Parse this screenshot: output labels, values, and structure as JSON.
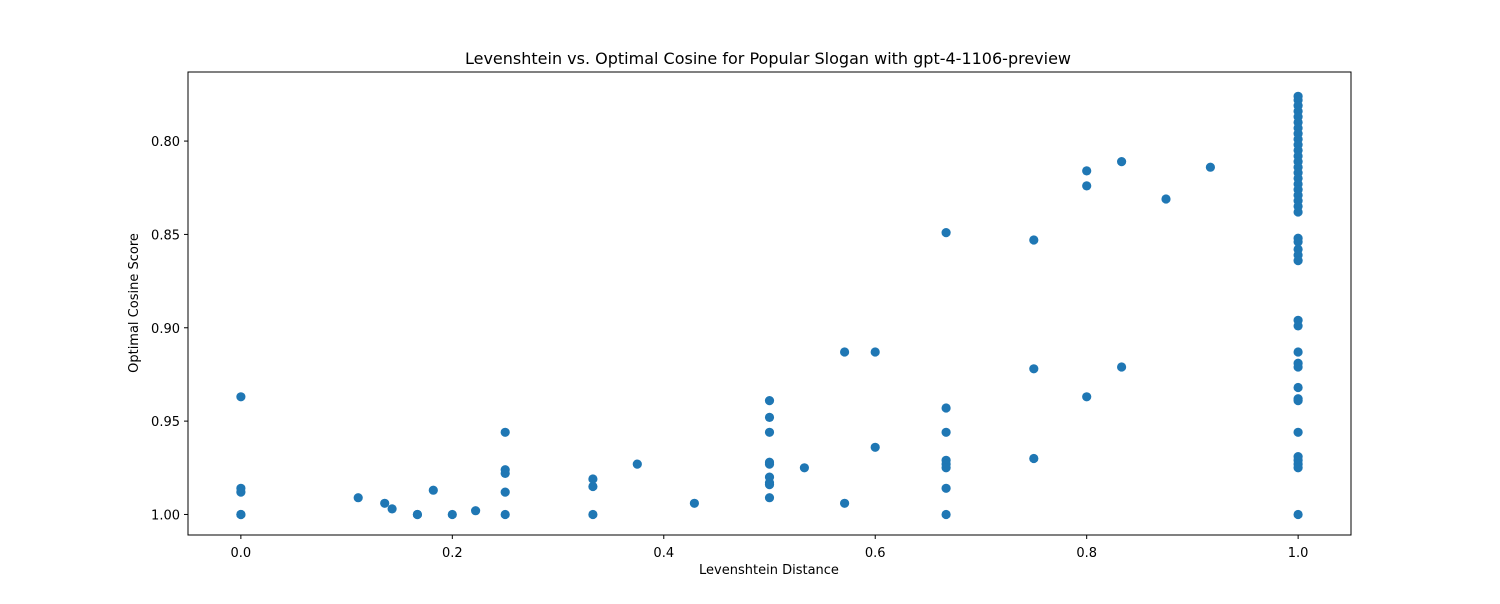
{
  "chart_data": {
    "type": "scatter",
    "title": "Levenshtein vs. Optimal Cosine for Popular Slogan with gpt-4-1106-preview",
    "xlabel": "Levenshtein Distance",
    "ylabel": "Optimal Cosine Score",
    "xlim": [
      -0.05,
      1.05
    ],
    "ylim": [
      1.011,
      0.763
    ],
    "y_inverted": true,
    "grid": false,
    "x_ticks": [
      0.0,
      0.2,
      0.4,
      0.6,
      0.8,
      1.0
    ],
    "x_tick_labels": [
      "0.0",
      "0.2",
      "0.4",
      "0.6",
      "0.8",
      "1.0"
    ],
    "y_ticks": [
      0.8,
      0.85,
      0.9,
      0.95,
      1.0
    ],
    "y_tick_labels": [
      "0.80",
      "0.85",
      "0.90",
      "0.95",
      "1.00"
    ],
    "marker_color": "#1f77b4",
    "points": [
      {
        "x": 0.0,
        "y": 0.937
      },
      {
        "x": 0.0,
        "y": 0.986
      },
      {
        "x": 0.0,
        "y": 0.988
      },
      {
        "x": 0.0,
        "y": 1.0
      },
      {
        "x": 0.0,
        "y": 1.0
      },
      {
        "x": 0.111,
        "y": 0.991
      },
      {
        "x": 0.136,
        "y": 0.994
      },
      {
        "x": 0.143,
        "y": 0.997
      },
      {
        "x": 0.167,
        "y": 1.0
      },
      {
        "x": 0.167,
        "y": 1.0
      },
      {
        "x": 0.182,
        "y": 0.987
      },
      {
        "x": 0.2,
        "y": 1.0
      },
      {
        "x": 0.222,
        "y": 0.998
      },
      {
        "x": 0.25,
        "y": 0.956
      },
      {
        "x": 0.25,
        "y": 0.976
      },
      {
        "x": 0.25,
        "y": 0.978
      },
      {
        "x": 0.25,
        "y": 0.988
      },
      {
        "x": 0.25,
        "y": 1.0
      },
      {
        "x": 0.333,
        "y": 0.981
      },
      {
        "x": 0.333,
        "y": 0.985
      },
      {
        "x": 0.333,
        "y": 1.0
      },
      {
        "x": 0.375,
        "y": 0.973
      },
      {
        "x": 0.429,
        "y": 0.994
      },
      {
        "x": 0.5,
        "y": 0.939
      },
      {
        "x": 0.5,
        "y": 0.948
      },
      {
        "x": 0.5,
        "y": 0.956
      },
      {
        "x": 0.5,
        "y": 0.972
      },
      {
        "x": 0.5,
        "y": 0.973
      },
      {
        "x": 0.5,
        "y": 0.98
      },
      {
        "x": 0.5,
        "y": 0.983
      },
      {
        "x": 0.5,
        "y": 0.984
      },
      {
        "x": 0.5,
        "y": 0.991
      },
      {
        "x": 0.533,
        "y": 0.975
      },
      {
        "x": 0.571,
        "y": 0.913
      },
      {
        "x": 0.571,
        "y": 0.994
      },
      {
        "x": 0.6,
        "y": 0.913
      },
      {
        "x": 0.6,
        "y": 0.964
      },
      {
        "x": 0.667,
        "y": 0.849
      },
      {
        "x": 0.667,
        "y": 0.943
      },
      {
        "x": 0.667,
        "y": 0.956
      },
      {
        "x": 0.667,
        "y": 0.971
      },
      {
        "x": 0.667,
        "y": 0.973
      },
      {
        "x": 0.667,
        "y": 0.975
      },
      {
        "x": 0.667,
        "y": 0.986
      },
      {
        "x": 0.667,
        "y": 1.0
      },
      {
        "x": 0.75,
        "y": 0.853
      },
      {
        "x": 0.75,
        "y": 0.922
      },
      {
        "x": 0.75,
        "y": 0.97
      },
      {
        "x": 0.8,
        "y": 0.816
      },
      {
        "x": 0.8,
        "y": 0.824
      },
      {
        "x": 0.8,
        "y": 0.937
      },
      {
        "x": 0.833,
        "y": 0.811
      },
      {
        "x": 0.833,
        "y": 0.921
      },
      {
        "x": 0.875,
        "y": 0.831
      },
      {
        "x": 0.917,
        "y": 0.814
      },
      {
        "x": 1.0,
        "y": 0.776
      },
      {
        "x": 1.0,
        "y": 0.778
      },
      {
        "x": 1.0,
        "y": 0.781
      },
      {
        "x": 1.0,
        "y": 0.784
      },
      {
        "x": 1.0,
        "y": 0.787
      },
      {
        "x": 1.0,
        "y": 0.79
      },
      {
        "x": 1.0,
        "y": 0.793
      },
      {
        "x": 1.0,
        "y": 0.796
      },
      {
        "x": 1.0,
        "y": 0.799
      },
      {
        "x": 1.0,
        "y": 0.802
      },
      {
        "x": 1.0,
        "y": 0.805
      },
      {
        "x": 1.0,
        "y": 0.808
      },
      {
        "x": 1.0,
        "y": 0.811
      },
      {
        "x": 1.0,
        "y": 0.814
      },
      {
        "x": 1.0,
        "y": 0.817
      },
      {
        "x": 1.0,
        "y": 0.82
      },
      {
        "x": 1.0,
        "y": 0.823
      },
      {
        "x": 1.0,
        "y": 0.826
      },
      {
        "x": 1.0,
        "y": 0.829
      },
      {
        "x": 1.0,
        "y": 0.832
      },
      {
        "x": 1.0,
        "y": 0.835
      },
      {
        "x": 1.0,
        "y": 0.838
      },
      {
        "x": 1.0,
        "y": 0.852
      },
      {
        "x": 1.0,
        "y": 0.854
      },
      {
        "x": 1.0,
        "y": 0.858
      },
      {
        "x": 1.0,
        "y": 0.861
      },
      {
        "x": 1.0,
        "y": 0.864
      },
      {
        "x": 1.0,
        "y": 0.896
      },
      {
        "x": 1.0,
        "y": 0.899
      },
      {
        "x": 1.0,
        "y": 0.913
      },
      {
        "x": 1.0,
        "y": 0.919
      },
      {
        "x": 1.0,
        "y": 0.921
      },
      {
        "x": 1.0,
        "y": 0.932
      },
      {
        "x": 1.0,
        "y": 0.938
      },
      {
        "x": 1.0,
        "y": 0.939
      },
      {
        "x": 1.0,
        "y": 0.956
      },
      {
        "x": 1.0,
        "y": 0.969
      },
      {
        "x": 1.0,
        "y": 0.971
      },
      {
        "x": 1.0,
        "y": 0.973
      },
      {
        "x": 1.0,
        "y": 0.975
      },
      {
        "x": 1.0,
        "y": 1.0
      }
    ]
  }
}
